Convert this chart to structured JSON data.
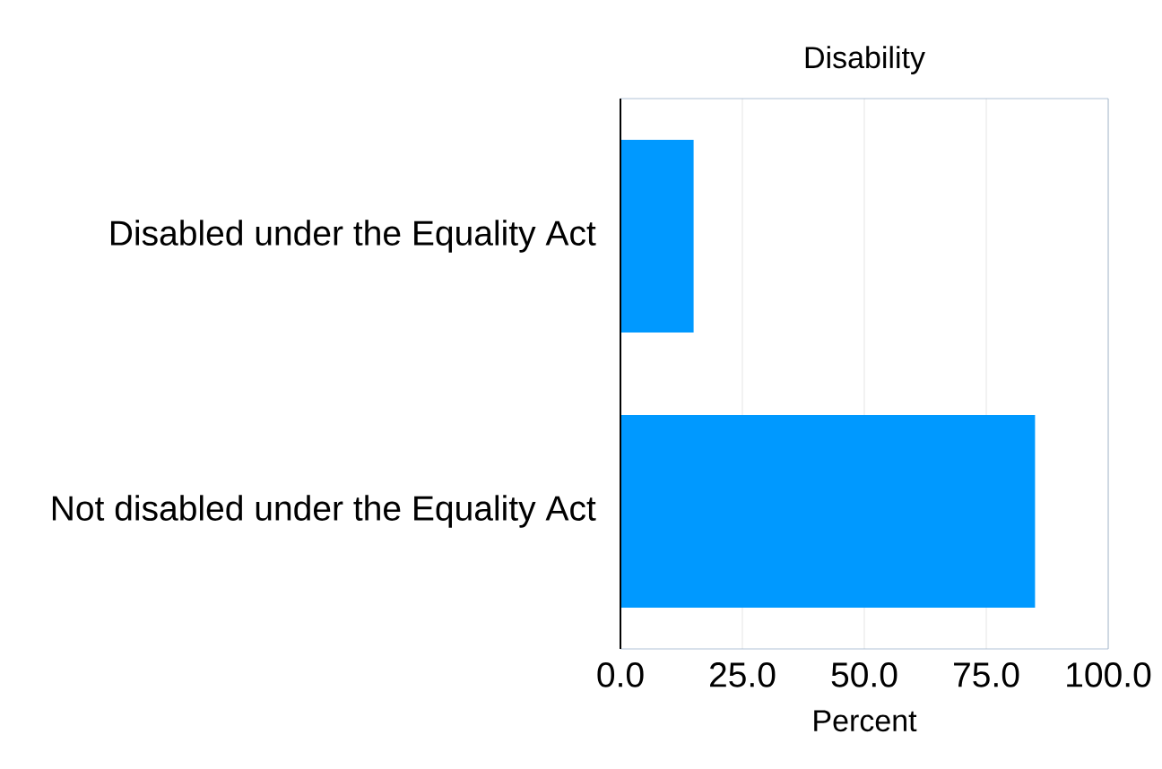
{
  "chart_data": {
    "type": "bar",
    "orientation": "horizontal",
    "title": "Disability",
    "xlabel": "Percent",
    "categories": [
      "Disabled under the Equality Act",
      "Not disabled under the Equality Act"
    ],
    "values": [
      15,
      85
    ],
    "color": "#0099ff",
    "xlim": [
      0,
      100
    ],
    "xticks": [
      {
        "value": 0,
        "label": "0.0"
      },
      {
        "value": 25,
        "label": "25.0"
      },
      {
        "value": 50,
        "label": "50.0"
      },
      {
        "value": 75,
        "label": "75.0"
      },
      {
        "value": 100,
        "label": "100.0"
      }
    ],
    "grid": "x"
  }
}
